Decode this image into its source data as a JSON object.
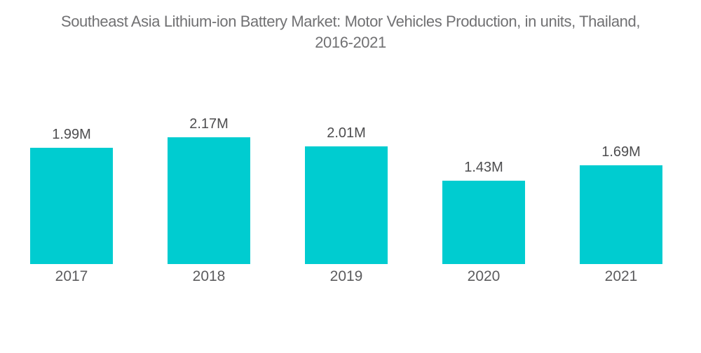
{
  "chart_data": {
    "type": "bar",
    "title": "Southeast Asia Lithium-ion Battery Market: Motor Vehicles Production, in units, Thailand, 2016-2021",
    "title_lines": [
      "Southeast Asia Lithium-ion Battery Market: Motor Vehicles Production, in units, Thailand,",
      "2016-2021"
    ],
    "categories": [
      "2017",
      "2018",
      "2019",
      "2020",
      "2021"
    ],
    "values": [
      1.99,
      2.17,
      2.01,
      1.43,
      1.69
    ],
    "value_labels": [
      "1.99M",
      "2.17M",
      "2.01M",
      "1.43M",
      "1.69M"
    ],
    "ylim": [
      0,
      2.5
    ],
    "grid": false,
    "legend": false,
    "axis_lines": false,
    "colors": {
      "bar": "#00CCD0",
      "title_text": "#717173",
      "value_label_text": "#4d4d4f",
      "tick_label_text": "#5c5c5e",
      "background": "#ffffff"
    }
  }
}
